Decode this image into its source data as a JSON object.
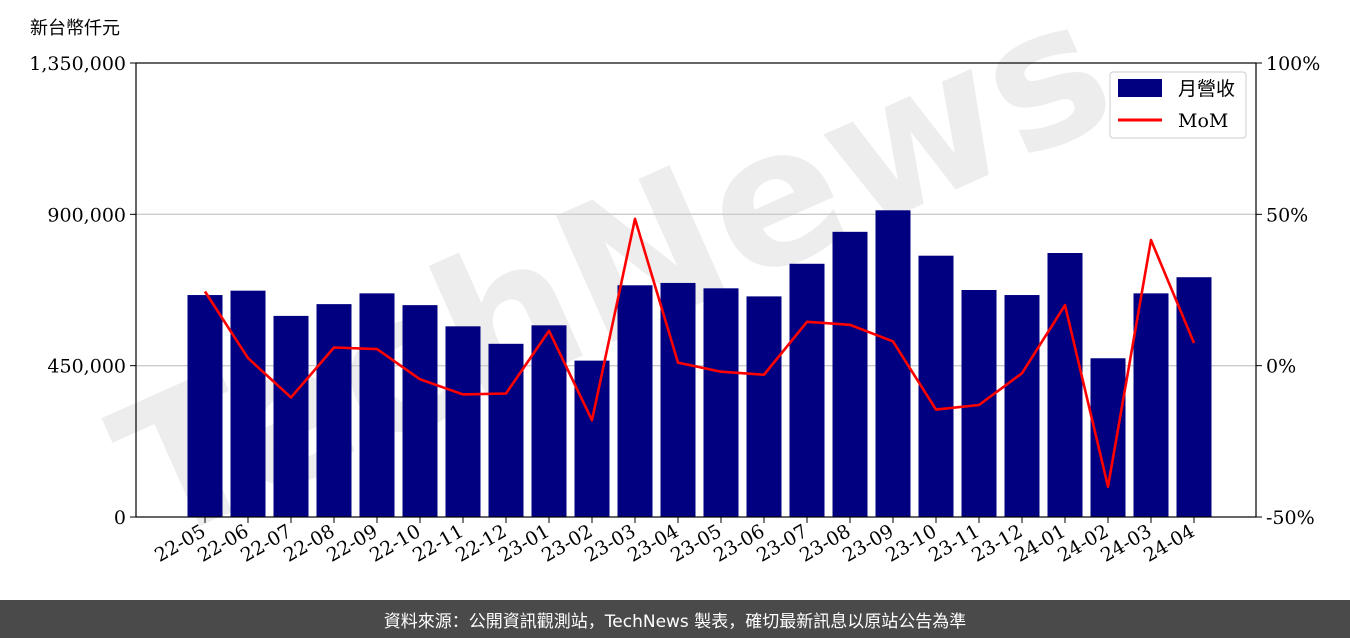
{
  "header": {
    "unit_label": "新台幣仟元"
  },
  "footer": {
    "source_text": "資料來源：公開資訊觀測站，TechNews 製表，確切最新訊息以原站公告為準"
  },
  "watermark": {
    "text": "TechNews"
  },
  "colors": {
    "bar": "#000080",
    "line": "#ff0000",
    "grid": "#cccccc",
    "axis": "#000000"
  },
  "chart_data": {
    "type": "bar",
    "categories": [
      "22-05",
      "22-06",
      "22-07",
      "22-08",
      "22-09",
      "22-10",
      "22-11",
      "22-12",
      "23-01",
      "23-02",
      "23-03",
      "23-04",
      "23-05",
      "23-06",
      "23-07",
      "23-08",
      "23-09",
      "23-10",
      "23-11",
      "23-12",
      "24-01",
      "24-02",
      "24-03",
      "24-04"
    ],
    "series": [
      {
        "name": "月營收",
        "type": "bar",
        "axis": "left",
        "values": [
          660000,
          673000,
          598000,
          633000,
          665000,
          630000,
          567000,
          515000,
          570000,
          465000,
          689000,
          696000,
          680000,
          656000,
          753000,
          848000,
          912000,
          777000,
          675000,
          660000,
          785000,
          472000,
          665000,
          713000
        ]
      },
      {
        "name": "MoM",
        "type": "line",
        "axis": "right",
        "values": [
          24.5,
          2.5,
          -10.5,
          6.0,
          5.5,
          -4.5,
          -9.5,
          -9.2,
          11.5,
          -18.0,
          48.5,
          1.0,
          -2.0,
          -3.0,
          14.5,
          13.5,
          8.0,
          -14.5,
          -13.0,
          -2.5,
          20.0,
          -40.0,
          41.5,
          7.5
        ]
      }
    ],
    "y_left": {
      "ylim": [
        0,
        1350000
      ],
      "ticks": [
        0,
        450000,
        900000,
        1350000
      ],
      "tick_labels": [
        "0",
        "450,000",
        "900,000",
        "1,350,000"
      ]
    },
    "y_right": {
      "ylim": [
        -50,
        100
      ],
      "ticks": [
        -50,
        0,
        50,
        100
      ],
      "tick_labels": [
        "-50%",
        "0%",
        "50%",
        "100%"
      ]
    },
    "grid": true,
    "legend": {
      "placement": "top-right",
      "entries": [
        "月營收",
        "MoM"
      ]
    }
  }
}
